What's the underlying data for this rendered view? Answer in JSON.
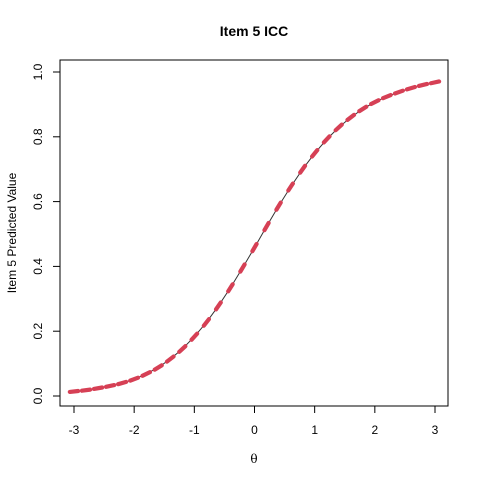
{
  "chart_data": {
    "type": "line",
    "title": "Item 5 ICC",
    "xlabel": "θ",
    "ylabel": "Item 5 Predicted Value",
    "xlim": [
      -3,
      3
    ],
    "ylim": [
      0,
      1
    ],
    "x_ticks": [
      -3,
      -2,
      -1,
      0,
      1,
      2,
      3
    ],
    "x_tick_labels": [
      "-3",
      "-2",
      "-1",
      "0",
      "1",
      "2",
      "3"
    ],
    "y_ticks": [
      0.0,
      0.2,
      0.4,
      0.6,
      0.8,
      1.0
    ],
    "y_tick_labels": [
      "0.0",
      "0.2",
      "0.4",
      "0.6",
      "0.8",
      "1.0"
    ],
    "grid": false,
    "legend": "none",
    "line_color": "#333333",
    "marker_color": "#d64055",
    "series": [
      {
        "x": [
          -3.0,
          -2.8,
          -2.6,
          -2.4,
          -2.2,
          -2.0,
          -1.8,
          -1.6,
          -1.4,
          -1.2,
          -1.0,
          -0.8,
          -0.6,
          -0.4,
          -0.2,
          0.0,
          0.2,
          0.4,
          0.6,
          0.8,
          1.0,
          1.2,
          1.4,
          1.6,
          1.8,
          2.0,
          2.2,
          2.4,
          2.6,
          2.8,
          3.0
        ],
        "values": [
          0.014,
          0.018,
          0.024,
          0.031,
          0.04,
          0.052,
          0.068,
          0.088,
          0.114,
          0.145,
          0.183,
          0.227,
          0.278,
          0.334,
          0.395,
          0.458,
          0.523,
          0.586,
          0.645,
          0.7,
          0.749,
          0.792,
          0.829,
          0.86,
          0.886,
          0.907,
          0.924,
          0.938,
          0.95,
          0.96,
          0.968
        ]
      }
    ]
  }
}
